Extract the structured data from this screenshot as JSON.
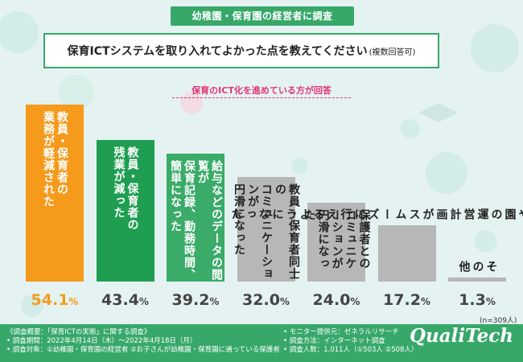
{
  "header": {
    "banner": "幼稚園・保育園の経営者に調査",
    "question": "保育ICTシステムを取り入れてよかった点を教えてください",
    "question_note": "(複数回答可)",
    "subtitle": "保育のICT化を進めている方が回答"
  },
  "chart_data": {
    "type": "bar",
    "title": "保育ICTシステムを取り入れてよかった点を教えてください(複数回答可)",
    "subtitle": "保育のICT化を進めている方が回答",
    "categories": [
      "教員・保育者の業務が軽減された",
      "教員・保育者の残業が減った",
      "給与などのデータの閲覧が簡単になった / 保育記録、勤務時間、",
      "教員・保育者同士のコミュニケーションが円滑になった",
      "保護者とのコミュニケーションが円滑になった",
      "行事計画や園の運営計画がスムーズに行えるようになった",
      "その他"
    ],
    "labels": [
      [
        "教員・保育者の",
        "業務が軽減された"
      ],
      [
        "教員・保育者の",
        "残業が減った"
      ],
      [
        "給与などのデータの閲覧が",
        "保育記録、勤務時間、",
        "簡単になった"
      ],
      [
        "教員・保育者同士の",
        "コミュニケーションが",
        "円滑になった"
      ],
      [
        "保護者との",
        "コミュニケーションが",
        "円滑になった"
      ],
      [
        "行事計画や園の運営計画が",
        "スムーズに行えるようになった"
      ],
      [
        "その他"
      ]
    ],
    "values": [
      54.1,
      43.4,
      39.2,
      32.0,
      24.0,
      17.2,
      1.3
    ],
    "value_labels": [
      "54.1",
      "43.4",
      "39.2",
      "32.0",
      "24.0",
      "17.2",
      "1.3"
    ],
    "unit": "%",
    "colors": [
      "#f59a1b",
      "#1f9e52",
      "#3aab68",
      "#b7b7b7",
      "#b7b7b7",
      "#b7b7b7",
      "#b7b7b7"
    ],
    "ylim": [
      0,
      60
    ],
    "n_note": "(n=309人)"
  },
  "footer": {
    "left": [
      "《調査概要：「保育ICTの実態」に関する調査》",
      "• 調査期間：2022年4月14日（木）～2022年4月18日（月）",
      "• 調査対象：①幼稚園・保育園の経営者 ②お子さんが幼稚園・保育園に通っている保護者"
    ],
    "right": [
      "• モニター提供元：ゼネラルリサーチ",
      "• 調査方法：インターネット調査",
      "• 調査人数：1,011人（①503人 ②508人）"
    ],
    "logo": "QualiTech"
  }
}
